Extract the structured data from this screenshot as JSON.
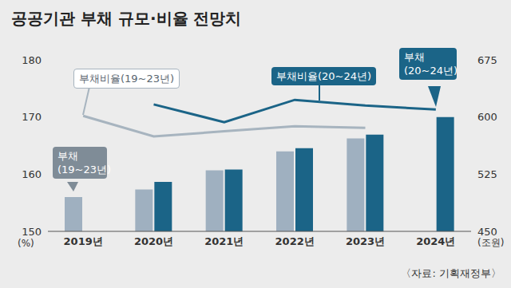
{
  "chart_data": {
    "type": "bar",
    "title": "공공기관 부채 규모·비율 전망치",
    "source": "〈자료: 기획재정부〉",
    "categories": [
      "2019년",
      "2020년",
      "2021년",
      "2022년",
      "2023년",
      "2024년"
    ],
    "series": [
      {
        "name": "부채(19~23년)",
        "type": "bar",
        "axis": "y2",
        "color": "#9fb0c0",
        "values": [
          495,
          505,
          530,
          555,
          572,
          null
        ]
      },
      {
        "name": "부채(20~24년)",
        "type": "bar",
        "axis": "y2",
        "color": "#1b6487",
        "values": [
          null,
          515,
          531,
          559,
          577,
          600
        ]
      },
      {
        "name": "부채비율(19~23년)",
        "type": "line",
        "color": "#a7b4bf",
        "marker": "none",
        "values": [
          170.2,
          166.6,
          167.5,
          168.4,
          168.1,
          null
        ]
      },
      {
        "name": "부채비율(20~24년)",
        "type": "line",
        "color": "#1b6487",
        "marker": "none",
        "values": [
          null,
          172.2,
          169.1,
          173,
          172,
          171.3
        ]
      }
    ],
    "ylim": [
      150,
      180
    ],
    "yticks": [
      150,
      160,
      170,
      180
    ],
    "y2lim": [
      450,
      675
    ],
    "y2ticks": [
      450,
      525,
      600,
      675
    ],
    "y_label": "(%)",
    "y2_label": "(조원)",
    "grid": false
  }
}
